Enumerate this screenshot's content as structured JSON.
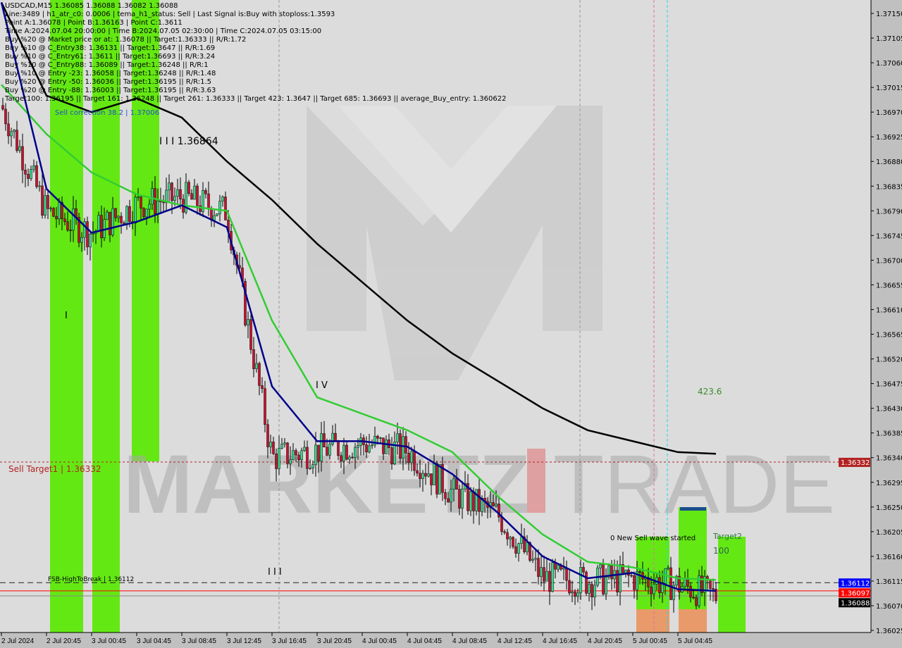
{
  "header": {
    "title": "USDCAD,M15  1.36085 1.36088 1.36082 1.36088",
    "lines": [
      "Line:3489 | h1_atr_c0: 0.0006 | tema_h1_status: Sell | Last Signal is:Buy with stoploss:1.3593",
      "Point A:1.36078 | Point B:1.36163 | Point C:1.3611",
      "Time A:2024.07.04 20:00:00 | Time B:2024.07.05 02:30:00 | Time C:2024.07.05 03:15:00",
      "Buy %20 @ Market price or at: 1.36078 || Target:1.36333 || R/R:1.72",
      "Buy %10 @ C_Entry38: 1.36131 || Target:1.3647 || R/R:1.69",
      "Buy %10 @ C_Entry61: 1.3611 || Target:1.36693 || R/R:3.24",
      "Buy %10 @ C_Entry88: 1.36089 || Target:1.36248 || R/R:1",
      "Buy %10 @ Entry -23: 1.36058 || Target:1.36248 || R/R:1.48",
      "Buy %20 @ Entry -50: 1.36036 || Target:1.36195 || R/R:1.5",
      "Buy %20 @ Entry -88: 1.36003 || Target:1.36195 || R/R:3.63",
      "Target100: 1.36195 || Target 161: 1.36248 || Target 261: 1.36333 || Target 423: 1.3647 || Target 685: 1.36693 || average_Buy_entry: 1.360622"
    ]
  },
  "annotations": {
    "sell_correction": "Sell correction 38.2 | 1.37006",
    "level_high": "I I I 1.36864",
    "wave_iv": "I V",
    "wave_i": "I",
    "wave_iii": "I I I",
    "sell_target": "Sell Target1 | 1.36332",
    "fsb": "FSB-HighToBreak | 1.36112",
    "fib_423": "423.6",
    "target2": "Target2",
    "fib_100": "100",
    "new_wave": "0 New Sell wave started"
  },
  "watermark": "MARKETZI TRADE",
  "colors": {
    "bg": "#dcdcdc",
    "bull": "#3cd88a",
    "bear": "#c8102e",
    "green_zone": "#64e814",
    "orange_zone": "#e89a6a",
    "ma_black": "#000000",
    "ma_green": "#32cd32",
    "ma_blue": "#00008b",
    "sell_target": "#b22222",
    "fsb": "#0000cd"
  },
  "chart_data": {
    "type": "candlestick",
    "symbol": "USDCAD",
    "timeframe": "M15",
    "categories": [
      "2 Jul 2024",
      "2 Jul 20:45",
      "3 Jul 00:45",
      "3 Jul 04:45",
      "3 Jul 08:45",
      "3 Jul 12:45",
      "3 Jul 16:45",
      "3 Jul 20:45",
      "4 Jul 00:45",
      "4 Jul 04:45",
      "4 Jul 08:45",
      "4 Jul 12:45",
      "4 Jul 16:45",
      "4 Jul 20:45",
      "5 Jul 00:45",
      "5 Jul 04:45"
    ],
    "close_approx": [
      1.36982,
      1.36789,
      1.3675,
      1.36802,
      1.36815,
      1.36789,
      1.3634,
      1.36353,
      1.36366,
      1.36353,
      1.36276,
      1.36237,
      1.36121,
      1.36115,
      1.36121,
      1.36108
    ],
    "last_price": 1.36088,
    "series": [
      {
        "values": [
          1.3717,
          1.37,
          1.3697,
          1.36995,
          1.3696,
          1.3688,
          1.3681,
          1.3673,
          1.3666,
          1.3659,
          1.3653,
          1.3648,
          1.3643,
          1.3639,
          1.3637,
          1.3635
        ]
      },
      {
        "values": [
          1.3702,
          1.3693,
          1.3686,
          1.3682,
          1.368,
          1.3679,
          1.3659,
          1.3645,
          1.3642,
          1.3639,
          1.3635,
          1.3627,
          1.362,
          1.3615,
          1.3614,
          1.3612
        ]
      },
      {
        "values": [
          1.3717,
          1.3683,
          1.3675,
          1.3677,
          1.368,
          1.3676,
          1.3647,
          1.3637,
          1.3637,
          1.3636,
          1.3631,
          1.3624,
          1.3616,
          1.3612,
          1.3613,
          1.361
        ]
      }
    ],
    "y_ticks": [
      "1.37150",
      "1.37105",
      "1.37060",
      "1.37015",
      "1.36970",
      "1.36925",
      "1.36880",
      "1.36835",
      "1.36790",
      "1.36745",
      "1.36700",
      "1.36655",
      "1.36610",
      "1.36565",
      "1.36520",
      "1.36475",
      "1.36430",
      "1.36385",
      "1.36340",
      "1.36295",
      "1.36250",
      "1.36205",
      "1.36160",
      "1.36115",
      "1.36070",
      "1.36025"
    ],
    "ylim": [
      1.36025,
      1.3715
    ],
    "price_labels": [
      {
        "value": "1.36332",
        "color": "#b22222"
      },
      {
        "value": "1.36112",
        "color": "#0000ff"
      },
      {
        "value": "1.36097",
        "color": "#ff0000"
      },
      {
        "value": "1.36088",
        "color": "#000000"
      }
    ],
    "grid": false
  }
}
